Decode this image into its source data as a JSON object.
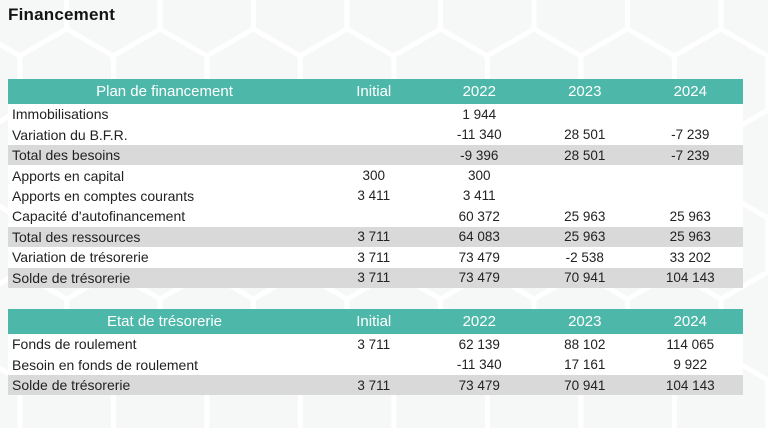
{
  "page": {
    "title": "Financement"
  },
  "colors": {
    "header_bg": "#4DB8AA",
    "header_text": "#FFFFFF",
    "stripe_bg": "#D9D9D9",
    "body_text": "#222222",
    "hex_fill": "#F1F2F2",
    "hex_stroke": "#FFFFFF"
  },
  "tables": [
    {
      "title": "Plan de financement",
      "columns": [
        "Initial",
        "2022",
        "2023",
        "2024"
      ],
      "rows": [
        {
          "label": "Immobilisations",
          "values": [
            "",
            "1 944",
            "",
            ""
          ],
          "stripe": false
        },
        {
          "label": "Variation du B.F.R.",
          "values": [
            "",
            "-11 340",
            "28 501",
            "-7 239"
          ],
          "stripe": false
        },
        {
          "label": "Total des besoins",
          "values": [
            "",
            "-9 396",
            "28 501",
            "-7 239"
          ],
          "stripe": true
        },
        {
          "label": "Apports en capital",
          "values": [
            "300",
            "300",
            "",
            ""
          ],
          "stripe": false
        },
        {
          "label": "Apports en comptes courants",
          "values": [
            "3 411",
            "3 411",
            "",
            ""
          ],
          "stripe": false
        },
        {
          "label": "Capacité d'autofinancement",
          "values": [
            "",
            "60 372",
            "25 963",
            "25 963"
          ],
          "stripe": false
        },
        {
          "label": "Total des ressources",
          "values": [
            "3 711",
            "64 083",
            "25 963",
            "25 963"
          ],
          "stripe": true
        },
        {
          "label": "Variation de trésorerie",
          "values": [
            "3 711",
            "73 479",
            "-2 538",
            "33 202"
          ],
          "stripe": false
        },
        {
          "label": "Solde de trésorerie",
          "values": [
            "3 711",
            "73 479",
            "70 941",
            "104 143"
          ],
          "stripe": true
        }
      ]
    },
    {
      "title": "Etat de trésorerie",
      "columns": [
        "Initial",
        "2022",
        "2023",
        "2024"
      ],
      "rows": [
        {
          "label": "Fonds de roulement",
          "values": [
            "3 711",
            "62 139",
            "88 102",
            "114 065"
          ],
          "stripe": false
        },
        {
          "label": "Besoin en fonds de roulement",
          "values": [
            "",
            "-11 340",
            "17 161",
            "9 922"
          ],
          "stripe": false
        },
        {
          "label": "Solde de trésorerie",
          "values": [
            "3 711",
            "73 479",
            "70 941",
            "104 143"
          ],
          "stripe": true
        }
      ]
    }
  ]
}
